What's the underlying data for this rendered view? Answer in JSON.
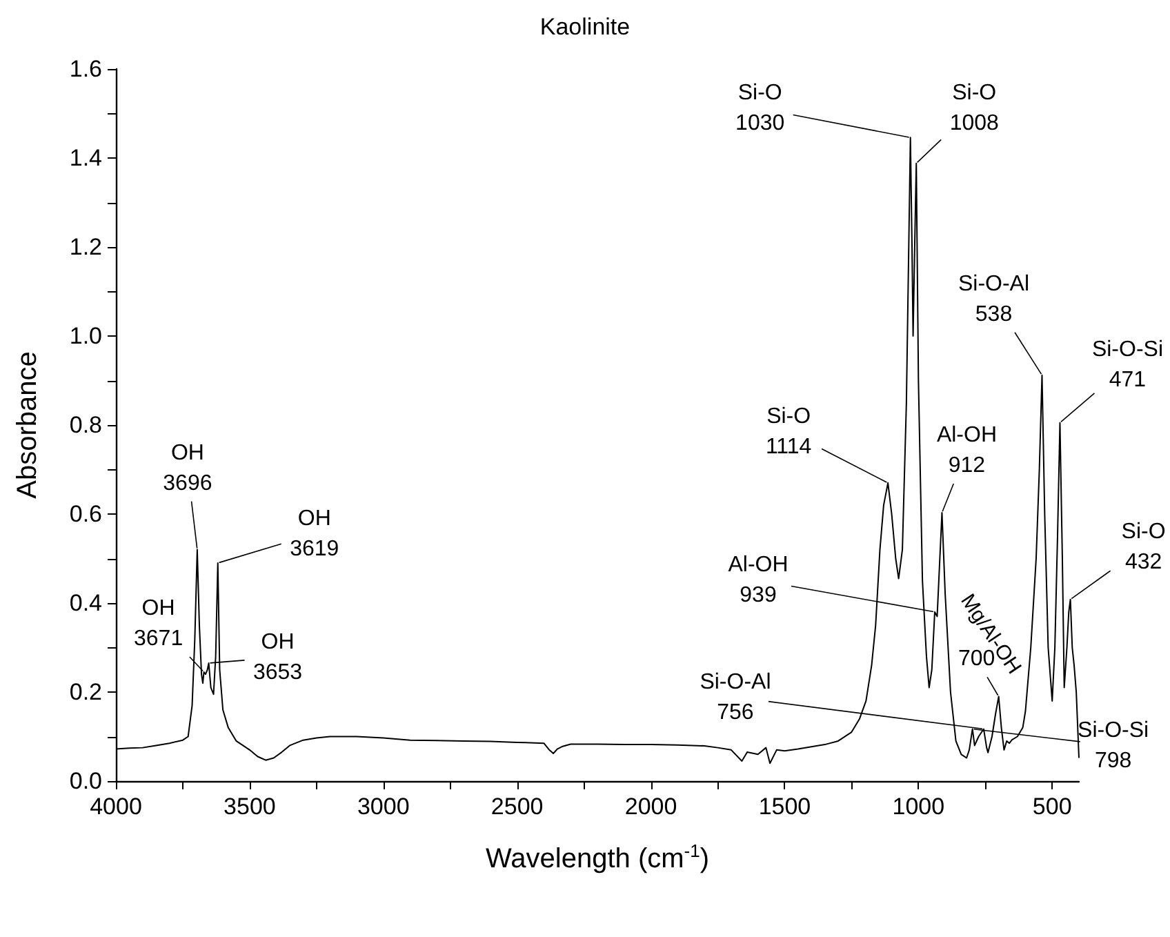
{
  "chart_data": {
    "type": "line",
    "title": "Kaolinite",
    "xlabel": "Wavelength (cm$^{-1}$)",
    "ylabel": "Absorbance",
    "xlim": [
      4000,
      400
    ],
    "ylim": [
      0,
      1.6
    ],
    "xticks": [
      4000,
      {
        "value": 3750,
        "label": null
      },
      3500,
      {
        "value": 3250,
        "label": null
      },
      3000,
      {
        "value": 2750,
        "label": null
      },
      2500,
      {
        "value": 2250,
        "label": null
      },
      2000,
      {
        "value": 1750,
        "label": null
      },
      1500,
      {
        "value": 1250,
        "label": null
      },
      1000,
      {
        "value": 750,
        "label": null
      },
      500
    ],
    "yticks": [
      {
        "value": 0,
        "label": "0.0"
      },
      {
        "value": 0.1,
        "label": null
      },
      0.2,
      {
        "value": 0.3,
        "label": null
      },
      0.4,
      {
        "value": 0.5,
        "label": null
      },
      0.6,
      {
        "value": 0.7,
        "label": null
      },
      0.8,
      {
        "value": 0.9,
        "label": null
      },
      {
        "value": 1,
        "label": "1.0"
      },
      {
        "value": 1.1,
        "label": null
      },
      1.2,
      {
        "value": 1.3,
        "label": null
      },
      1.4,
      {
        "value": 1.5,
        "label": null
      },
      1.6
    ],
    "grid": false,
    "marker": "none",
    "line_style": "solid",
    "x": [
      4000,
      3950,
      3900,
      3850,
      3800,
      3750,
      3730,
      3715,
      3705,
      3696,
      3688,
      3680,
      3675,
      3671,
      3665,
      3658,
      3653,
      3645,
      3635,
      3627,
      3619,
      3612,
      3600,
      3580,
      3550,
      3500,
      3470,
      3440,
      3410,
      3380,
      3350,
      3300,
      3250,
      3200,
      3100,
      3000,
      2900,
      2800,
      2700,
      2600,
      2500,
      2400,
      2380,
      2365,
      2350,
      2330,
      2300,
      2200,
      2100,
      2000,
      1900,
      1800,
      1750,
      1700,
      1660,
      1640,
      1600,
      1570,
      1555,
      1530,
      1500,
      1450,
      1400,
      1350,
      1300,
      1250,
      1220,
      1196,
      1175,
      1160,
      1144,
      1130,
      1114,
      1100,
      1085,
      1074,
      1060,
      1045,
      1030,
      1024,
      1020,
      1014,
      1008,
      1000,
      985,
      970,
      960,
      950,
      939,
      930,
      920,
      912,
      900,
      880,
      860,
      840,
      820,
      810,
      798,
      790,
      775,
      756,
      745,
      740,
      725,
      712,
      700,
      690,
      680,
      670,
      660,
      650,
      630,
      610,
      600,
      580,
      560,
      548,
      538,
      528,
      515,
      500,
      490,
      480,
      471,
      462,
      455,
      445,
      438,
      432,
      425,
      418,
      410,
      400
    ],
    "values": [
      0.072,
      0.074,
      0.075,
      0.08,
      0.085,
      0.092,
      0.1,
      0.17,
      0.32,
      0.52,
      0.35,
      0.24,
      0.22,
      0.245,
      0.24,
      0.25,
      0.265,
      0.21,
      0.195,
      0.28,
      0.49,
      0.25,
      0.16,
      0.12,
      0.09,
      0.07,
      0.055,
      0.047,
      0.052,
      0.065,
      0.08,
      0.092,
      0.097,
      0.1,
      0.1,
      0.097,
      0.092,
      0.091,
      0.09,
      0.089,
      0.087,
      0.085,
      0.07,
      0.062,
      0.072,
      0.078,
      0.083,
      0.083,
      0.082,
      0.082,
      0.081,
      0.079,
      0.075,
      0.07,
      0.045,
      0.065,
      0.06,
      0.075,
      0.04,
      0.07,
      0.068,
      0.072,
      0.077,
      0.082,
      0.09,
      0.11,
      0.14,
      0.18,
      0.26,
      0.35,
      0.52,
      0.62,
      0.67,
      0.6,
      0.5,
      0.455,
      0.52,
      0.85,
      1.446,
      1.2,
      1.0,
      1.2,
      1.388,
      0.9,
      0.45,
      0.28,
      0.21,
      0.25,
      0.38,
      0.37,
      0.5,
      0.603,
      0.42,
      0.2,
      0.09,
      0.06,
      0.052,
      0.07,
      0.117,
      0.08,
      0.1,
      0.117,
      0.075,
      0.064,
      0.1,
      0.15,
      0.19,
      0.12,
      0.07,
      0.09,
      0.085,
      0.093,
      0.1,
      0.12,
      0.157,
      0.3,
      0.5,
      0.7,
      0.912,
      0.6,
      0.3,
      0.18,
      0.3,
      0.55,
      0.805,
      0.5,
      0.21,
      0.3,
      0.38,
      0.408,
      0.3,
      0.26,
      0.2,
      0.052
    ],
    "color": "#000000",
    "annotations": [
      {
        "text": "OH\n3696",
        "x": 3696,
        "y": 0.52
      },
      {
        "text": "OH\n3619",
        "x": 3619,
        "y": 0.49
      },
      {
        "text": "OH\n3671",
        "x": 3671,
        "y": 0.245
      },
      {
        "text": "OH\n3653",
        "x": 3653,
        "y": 0.265
      },
      {
        "text": "Si-O\n1114",
        "x": 1114,
        "y": 0.67
      },
      {
        "text": "Si-O\n1030",
        "x": 1030,
        "y": 1.446
      },
      {
        "text": "Si-O\n1008",
        "x": 1008,
        "y": 1.388
      },
      {
        "text": "Al-OH\n939",
        "x": 939,
        "y": 0.38
      },
      {
        "text": "Al-OH\n912",
        "x": 912,
        "y": 0.603
      },
      {
        "text": "Si-O-Al\n756",
        "x": 756,
        "y": 0.117
      },
      {
        "text": "Si-O-Si\n798",
        "x": 798,
        "y": 0.117
      },
      {
        "text": "700",
        "x": 700,
        "y": 0.19
      },
      {
        "text": "Si-O-Al\n538",
        "x": 538,
        "y": 0.912
      },
      {
        "text": "Si-O-Si\n471",
        "x": 471,
        "y": 0.805
      },
      {
        "text": "Si-O\n432",
        "x": 432,
        "y": 0.408
      },
      "Mg/Al-OH"
    ]
  }
}
